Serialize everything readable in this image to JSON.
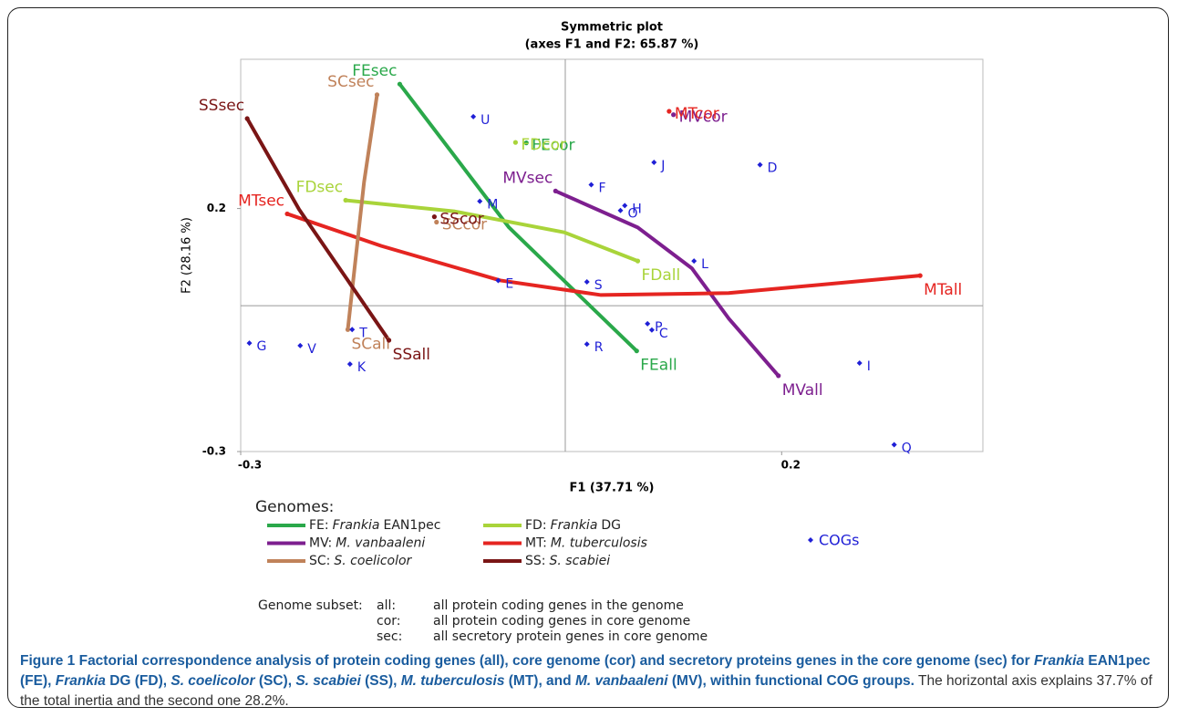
{
  "chart_data": {
    "type": "scatter",
    "title": [
      "Symmetric plot",
      "(axes F1 and F2: 65.87 %)"
    ],
    "xlabel": "F1 (37.71 %)",
    "ylabel": "F2 (28.16 %)",
    "xlim": [
      -0.3,
      0.386
    ],
    "ylim": [
      -0.3,
      0.507
    ],
    "xticks": [
      -0.3,
      0.2
    ],
    "yticks": [
      -0.3,
      0.2
    ],
    "cogs": {
      "name": "COGs",
      "color": "#1f1fd6",
      "labels": [
        "U",
        "M",
        "F",
        "O",
        "H",
        "J",
        "D",
        "E",
        "S",
        "L",
        "P",
        "C",
        "R",
        "T",
        "G",
        "V",
        "K",
        "I",
        "Q"
      ],
      "x": [
        -0.085,
        -0.079,
        0.024,
        0.051,
        0.055,
        0.082,
        0.18,
        -0.062,
        0.02,
        0.119,
        0.076,
        0.08,
        0.02,
        -0.197,
        -0.292,
        -0.245,
        -0.199,
        0.272,
        0.304
      ],
      "values": [
        0.389,
        0.215,
        0.249,
        0.196,
        0.206,
        0.295,
        0.29,
        0.052,
        0.049,
        0.092,
        -0.037,
        -0.05,
        -0.079,
        -0.049,
        -0.077,
        -0.082,
        -0.12,
        -0.118,
        -0.286
      ]
    },
    "genomes": {
      "labels": [
        "FEsec",
        "FEcor",
        "FEall",
        "FDsec",
        "FDcor",
        "FDall",
        "MVsec",
        "MVcor",
        "MVall",
        "MTsec",
        "MTcor",
        "MTall",
        "SCsec",
        "SCcor",
        "SCall",
        "SSsec",
        "SScor",
        "SSall"
      ],
      "colors": [
        "#2aa84a",
        "#2aa84a",
        "#2aa84a",
        "#a9d43a",
        "#a9d43a",
        "#a9d43a",
        "#7d1f8f",
        "#7d1f8f",
        "#7d1f8f",
        "#e52521",
        "#e52521",
        "#e52521",
        "#c0825a",
        "#c0825a",
        "#c0825a",
        "#7a1515",
        "#7a1515",
        "#7a1515"
      ],
      "x": [
        -0.153,
        -0.036,
        0.066,
        -0.203,
        -0.046,
        0.067,
        -0.009,
        0.1,
        0.197,
        -0.257,
        0.096,
        0.328,
        -0.174,
        -0.119,
        -0.201,
        -0.294,
        -0.121,
        -0.163
      ],
      "values": [
        0.456,
        0.335,
        -0.093,
        0.217,
        0.336,
        0.092,
        0.236,
        0.393,
        -0.144,
        0.189,
        0.4,
        0.062,
        0.434,
        0.172,
        -0.049,
        0.385,
        0.183,
        -0.071
      ]
    },
    "series": [
      {
        "name": "FE:",
        "name_italic": "Frankia",
        "name_plain": "EAN1pec",
        "color": "#2aa84a",
        "x": [
          -0.153,
          -0.052,
          0.066
        ],
        "values": [
          0.456,
          0.161,
          -0.093
        ]
      },
      {
        "name": "FD:",
        "name_italic": "Frankia",
        "name_plain": "DG",
        "color": "#a9d43a",
        "x": [
          -0.203,
          -0.102,
          -0.001,
          0.067
        ],
        "values": [
          0.217,
          0.194,
          0.151,
          0.092
        ]
      },
      {
        "name": "MV:",
        "name_italic": "M. vanbaaleni",
        "color": "#7d1f8f",
        "x": [
          -0.009,
          0.067,
          0.117,
          0.151,
          0.197
        ],
        "values": [
          0.236,
          0.161,
          0.077,
          -0.026,
          -0.144
        ]
      },
      {
        "name": "MT:",
        "name_italic": "M. tuberculosis",
        "color": "#e52521",
        "x": [
          -0.257,
          -0.17,
          -0.06,
          0.033,
          0.151,
          0.328
        ],
        "values": [
          0.189,
          0.123,
          0.052,
          0.022,
          0.026,
          0.062
        ]
      },
      {
        "name": "SC:",
        "name_italic": "S. coelicolor",
        "color": "#c0825a",
        "x": [
          -0.174,
          -0.186,
          -0.201
        ],
        "values": [
          0.434,
          0.254,
          -0.049
        ]
      },
      {
        "name": "SS:",
        "name_italic": "S. scabiei",
        "color": "#7a1515",
        "x": [
          -0.294,
          -0.246,
          -0.163
        ],
        "values": [
          0.385,
          0.198,
          -0.071
        ]
      }
    ],
    "legend_title": "Genomes:",
    "subset_title": "Genome subset:",
    "subset": [
      [
        "all:",
        "all protein coding genes in the genome"
      ],
      [
        "cor:",
        "all protein coding genes in core genome"
      ],
      [
        "sec:",
        "all secretory protein genes in core genome"
      ]
    ]
  },
  "caption": [
    {
      "text": "Figure 1 Factorial correspondence analysis of protein coding genes (all), core genome (cor) and secretory proteins genes in the core genome (sec) for ",
      "style": "bold"
    },
    {
      "text": "Frankia",
      "style": "bold-italic"
    },
    {
      "text": " EAN1pec (FE), ",
      "style": "bold"
    },
    {
      "text": "Frankia",
      "style": "bold-italic"
    },
    {
      "text": " DG (FD), ",
      "style": "bold"
    },
    {
      "text": "S. coelicolor",
      "style": "bold-italic"
    },
    {
      "text": " (SC), ",
      "style": "bold"
    },
    {
      "text": "S. scabiei",
      "style": "bold-italic"
    },
    {
      "text": " (SS), ",
      "style": "bold"
    },
    {
      "text": "M. tuberculosis",
      "style": "bold-italic"
    },
    {
      "text": " (MT), and ",
      "style": "bold"
    },
    {
      "text": "M. vanbaaleni",
      "style": "bold-italic"
    },
    {
      "text": " (MV), within functional COG groups.",
      "style": "bold"
    },
    {
      "text": " The horizontal axis explains 37.7% of the total inertia and the second one 28.2%.",
      "style": "plain"
    }
  ]
}
